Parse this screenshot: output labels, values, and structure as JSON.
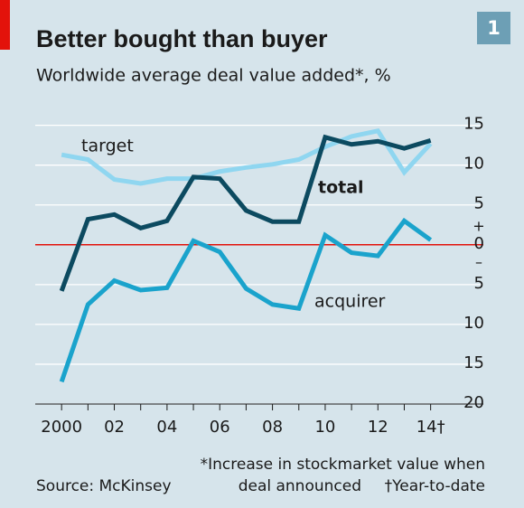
{
  "chart_data": {
    "type": "line",
    "title": "Better bought than buyer",
    "subtitle": "Worldwide average deal value added*, %",
    "chart_number": "1",
    "x": [
      2000,
      2001,
      2002,
      2003,
      2004,
      2005,
      2006,
      2007,
      2008,
      2009,
      2010,
      2011,
      2012,
      2013,
      2014
    ],
    "series": [
      {
        "name": "target",
        "color": "#8fd6f0",
        "values": [
          11.3,
          10.7,
          8.2,
          7.7,
          8.3,
          8.3,
          9.2,
          9.7,
          10.1,
          10.7,
          12.3,
          13.6,
          14.3,
          9.1,
          12.7
        ]
      },
      {
        "name": "total",
        "color": "#0c4a60",
        "values": [
          -5.8,
          3.2,
          3.8,
          2.1,
          3.0,
          8.5,
          8.3,
          4.3,
          2.9,
          2.9,
          13.5,
          12.6,
          13.0,
          12.1,
          13.1
        ]
      },
      {
        "name": "acquirer",
        "color": "#1aa3cc",
        "values": [
          -17.2,
          -7.5,
          -4.5,
          -5.7,
          -5.4,
          0.5,
          -0.9,
          -5.5,
          -7.5,
          -8.0,
          1.2,
          -1.0,
          -1.4,
          3.0,
          0.6
        ]
      }
    ],
    "xlim": [
      1999,
      2016
    ],
    "xticks": [
      2000,
      {
        "value": 2002,
        "label": "02"
      },
      {
        "value": 2004,
        "label": "04"
      },
      {
        "value": 2006,
        "label": "06"
      },
      {
        "value": 2008,
        "label": "08"
      },
      {
        "value": 2010,
        "label": "10"
      },
      {
        "value": 2012,
        "label": "12"
      },
      {
        "value": 2014,
        "label": "14†"
      }
    ],
    "ylim": [
      -20,
      17
    ],
    "yticks": [
      {
        "value": -20,
        "label": "20"
      },
      {
        "value": -15,
        "label": "15"
      },
      {
        "value": -10,
        "label": "10"
      },
      {
        "value": -5,
        "label": "5"
      },
      0,
      5,
      10,
      15
    ],
    "positive_sign": "+",
    "negative_sign": "–",
    "grid": true,
    "footnote": [
      "*Increase in stockmarket value when",
      "deal announced",
      "†Year-to-date"
    ],
    "source": "Source: McKinsey"
  }
}
